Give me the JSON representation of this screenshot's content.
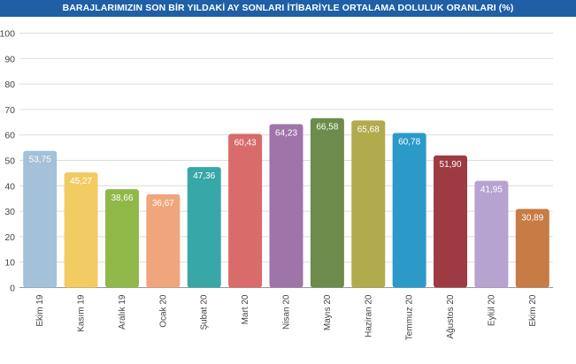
{
  "chart_data": {
    "type": "bar",
    "title": "BARAJLARIMIZIN SON BİR YILDAKİ AY SONLARI İTİBARİYLE ORTALAMA DOLULUK ORANLARI (%)",
    "categories": [
      "Ekim 19",
      "Kasım 19",
      "Aralık 19",
      "Ocak 20",
      "Şubat 20",
      "Mart 20",
      "Nisan 20",
      "Mayıs 20",
      "Haziran 20",
      "Temmuz 20",
      "Ağustos 20",
      "Eylül 20",
      "Ekim 20"
    ],
    "values": [
      53.75,
      45.27,
      38.66,
      36.67,
      47.36,
      60.43,
      64.23,
      66.58,
      65.68,
      60.78,
      51.9,
      41.95,
      30.89
    ],
    "value_labels": [
      "53,75",
      "45,27",
      "38,66",
      "36,67",
      "47,36",
      "60,43",
      "64,23",
      "66,58",
      "65,68",
      "60,78",
      "51,90",
      "41,95",
      "30,89"
    ],
    "colors": [
      "#a3c1d8",
      "#f2cb63",
      "#8fb848",
      "#f0a67c",
      "#38a7a8",
      "#d96b6b",
      "#9f74a9",
      "#6d8b4b",
      "#b2ab4d",
      "#2b9ac9",
      "#9e3a42",
      "#b6a3d0",
      "#c77b45"
    ],
    "yticks": [
      0,
      10,
      20,
      30,
      40,
      50,
      60,
      70,
      80,
      90,
      100
    ],
    "ylim": [
      0,
      100
    ],
    "xlabel": "",
    "ylabel": "",
    "grid": true
  }
}
